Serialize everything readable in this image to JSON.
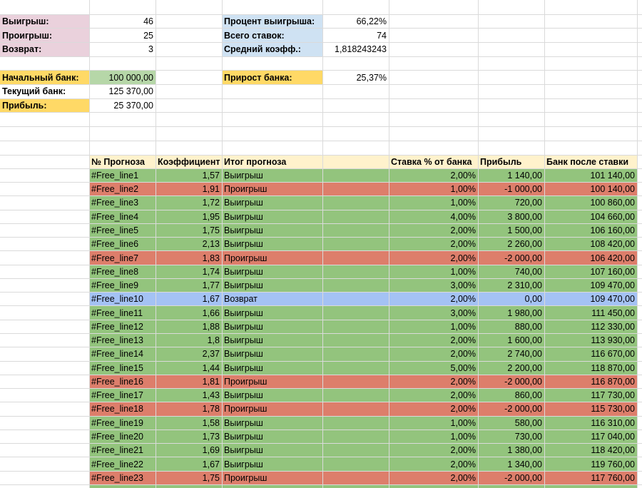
{
  "summary": {
    "left": [
      {
        "label": "Выигрыш:",
        "value": "46"
      },
      {
        "label": "Проигрыш:",
        "value": "25"
      },
      {
        "label": "Возврат:",
        "value": "3"
      }
    ],
    "right": [
      {
        "label": "Процент выигрыша:",
        "value": "66,22%"
      },
      {
        "label": "Всего ставок:",
        "value": "74"
      },
      {
        "label": "Средний коэфф.:",
        "value": "1,818243243"
      }
    ],
    "bank": [
      {
        "label": "Начальный банк:",
        "value": "100 000,00"
      },
      {
        "label": "Текущий банк:",
        "value": "125 370,00"
      },
      {
        "label": "Прибыль:",
        "value": "25 370,00"
      }
    ],
    "growth": {
      "label": "Прирост банка:",
      "value": "25,37%"
    }
  },
  "table": {
    "header": [
      "№ Прогноза",
      "Коэффициент",
      "Итог прогноза",
      "Ставка % от банка",
      "Прибыль",
      "Банк после ставки"
    ],
    "rows": [
      {
        "color": "#93c47d",
        "cells": [
          "#Free_line1",
          "1,57",
          "Выигрыш",
          "2,00%",
          "1 140,00",
          "101 140,00"
        ]
      },
      {
        "color": "#dd7e6b",
        "cells": [
          "#Free_line2",
          "1,91",
          "Проигрыш",
          "1,00%",
          "-1 000,00",
          "100 140,00"
        ]
      },
      {
        "color": "#93c47d",
        "cells": [
          "#Free_line3",
          "1,72",
          "Выигрыш",
          "1,00%",
          "720,00",
          "100 860,00"
        ]
      },
      {
        "color": "#93c47d",
        "cells": [
          "#Free_line4",
          "1,95",
          "Выигрыш",
          "4,00%",
          "3 800,00",
          "104 660,00"
        ]
      },
      {
        "color": "#93c47d",
        "cells": [
          "#Free_line5",
          "1,75",
          "Выигрыш",
          "2,00%",
          "1 500,00",
          "106 160,00"
        ]
      },
      {
        "color": "#93c47d",
        "cells": [
          "#Free_line6",
          "2,13",
          "Выигрыш",
          "2,00%",
          "2 260,00",
          "108 420,00"
        ]
      },
      {
        "color": "#dd7e6b",
        "cells": [
          "#Free_line7",
          "1,83",
          "Проигрыш",
          "2,00%",
          "-2 000,00",
          "106 420,00"
        ]
      },
      {
        "color": "#93c47d",
        "cells": [
          "#Free_line8",
          "1,74",
          "Выигрыш",
          "1,00%",
          "740,00",
          "107 160,00"
        ]
      },
      {
        "color": "#93c47d",
        "cells": [
          "#Free_line9",
          "1,77",
          "Выигрыш",
          "3,00%",
          "2 310,00",
          "109 470,00"
        ]
      },
      {
        "color": "#a4c2f4",
        "cells": [
          "#Free_line10",
          "1,67",
          "Возврат",
          "2,00%",
          "0,00",
          "109 470,00"
        ]
      },
      {
        "color": "#93c47d",
        "cells": [
          "#Free_line11",
          "1,66",
          "Выигрыш",
          "3,00%",
          "1 980,00",
          "111 450,00"
        ]
      },
      {
        "color": "#93c47d",
        "cells": [
          "#Free_line12",
          "1,88",
          "Выигрыш",
          "1,00%",
          "880,00",
          "112 330,00"
        ]
      },
      {
        "color": "#93c47d",
        "cells": [
          "#Free_line13",
          "1,8",
          "Выигрыш",
          "2,00%",
          "1 600,00",
          "113 930,00"
        ]
      },
      {
        "color": "#93c47d",
        "cells": [
          "#Free_line14",
          "2,37",
          "Выигрыш",
          "2,00%",
          "2 740,00",
          "116 670,00"
        ]
      },
      {
        "color": "#93c47d",
        "cells": [
          "#Free_line15",
          "1,44",
          "Выигрыш",
          "5,00%",
          "2 200,00",
          "118 870,00"
        ]
      },
      {
        "color": "#dd7e6b",
        "cells": [
          "#Free_line16",
          "1,81",
          "Проигрыш",
          "2,00%",
          "-2 000,00",
          "116 870,00"
        ]
      },
      {
        "color": "#93c47d",
        "cells": [
          "#Free_line17",
          "1,43",
          "Выигрыш",
          "2,00%",
          "860,00",
          "117 730,00"
        ]
      },
      {
        "color": "#dd7e6b",
        "cells": [
          "#Free_line18",
          "1,78",
          "Проигрыш",
          "2,00%",
          "-2 000,00",
          "115 730,00"
        ]
      },
      {
        "color": "#93c47d",
        "cells": [
          "#Free_line19",
          "1,58",
          "Выигрыш",
          "1,00%",
          "580,00",
          "116 310,00"
        ]
      },
      {
        "color": "#93c47d",
        "cells": [
          "#Free_line20",
          "1,73",
          "Выигрыш",
          "1,00%",
          "730,00",
          "117 040,00"
        ]
      },
      {
        "color": "#93c47d",
        "cells": [
          "#Free_line21",
          "1,69",
          "Выигрыш",
          "2,00%",
          "1 380,00",
          "118 420,00"
        ]
      },
      {
        "color": "#93c47d",
        "cells": [
          "#Free_line22",
          "1,67",
          "Выигрыш",
          "2,00%",
          "1 340,00",
          "119 760,00"
        ]
      },
      {
        "color": "#dd7e6b",
        "cells": [
          "#Free_line23",
          "1,75",
          "Проигрыш",
          "2,00%",
          "-2 000,00",
          "117 760,00"
        ]
      }
    ]
  }
}
